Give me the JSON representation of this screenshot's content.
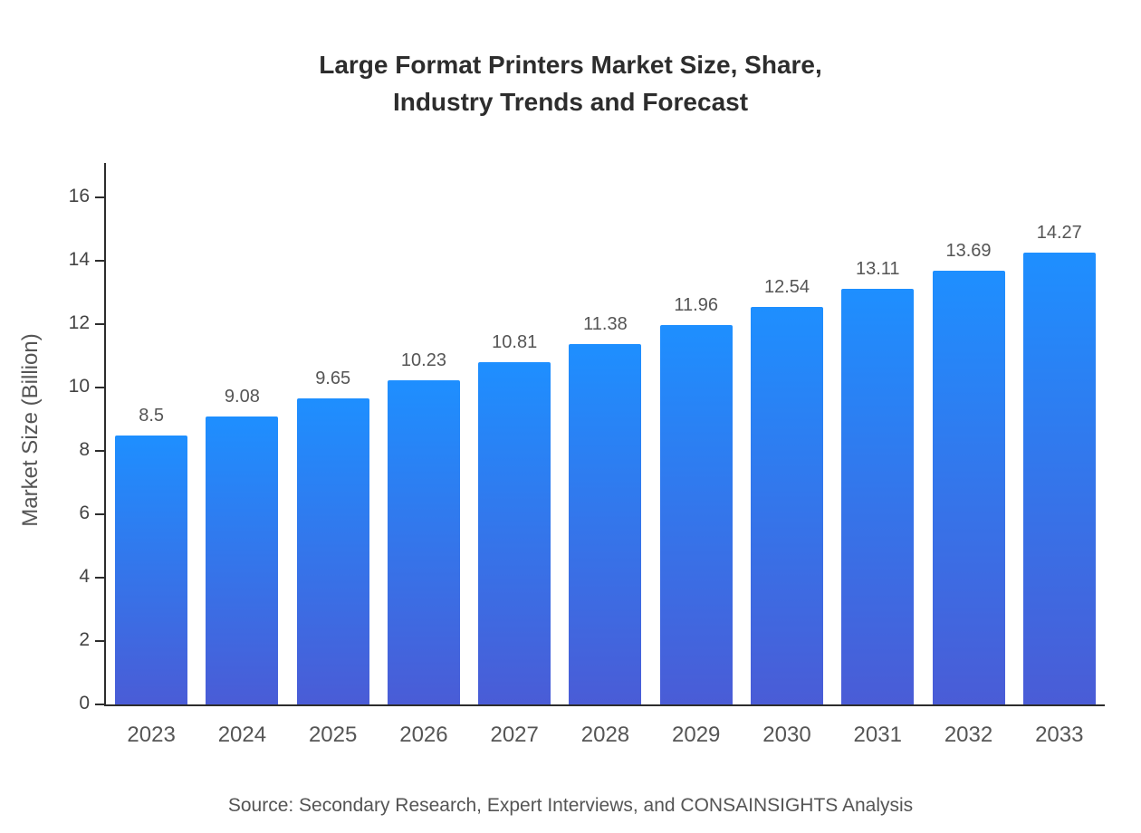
{
  "title": {
    "line1": "Large Format Printers Market Size, Share,",
    "line2": "Industry Trends and Forecast"
  },
  "source": "Source: Secondary Research, Expert Interviews, and CONSAINSIGHTS Analysis",
  "chart_data": {
    "type": "bar",
    "title": "Large Format Printers Market Size, Share, Industry Trends and Forecast",
    "categories": [
      "2023",
      "2024",
      "2025",
      "2026",
      "2027",
      "2028",
      "2029",
      "2030",
      "2031",
      "2032",
      "2033"
    ],
    "values": [
      8.5,
      9.08,
      9.65,
      10.23,
      10.81,
      11.38,
      11.96,
      12.54,
      13.11,
      13.69,
      14.27
    ],
    "value_labels": [
      "8.5",
      "9.08",
      "9.65",
      "10.23",
      "10.81",
      "11.38",
      "11.96",
      "12.54",
      "13.11",
      "13.69",
      "14.27"
    ],
    "xlabel": "",
    "ylabel": "Market Size (Billion)",
    "ylim": [
      0,
      16
    ],
    "yticks": [
      0,
      2,
      4,
      6,
      8,
      10,
      12,
      14,
      16
    ],
    "grid": false,
    "legend": false,
    "bar_gradient_top": "#1E8FFF",
    "bar_gradient_bottom": "#4A5CD6"
  }
}
